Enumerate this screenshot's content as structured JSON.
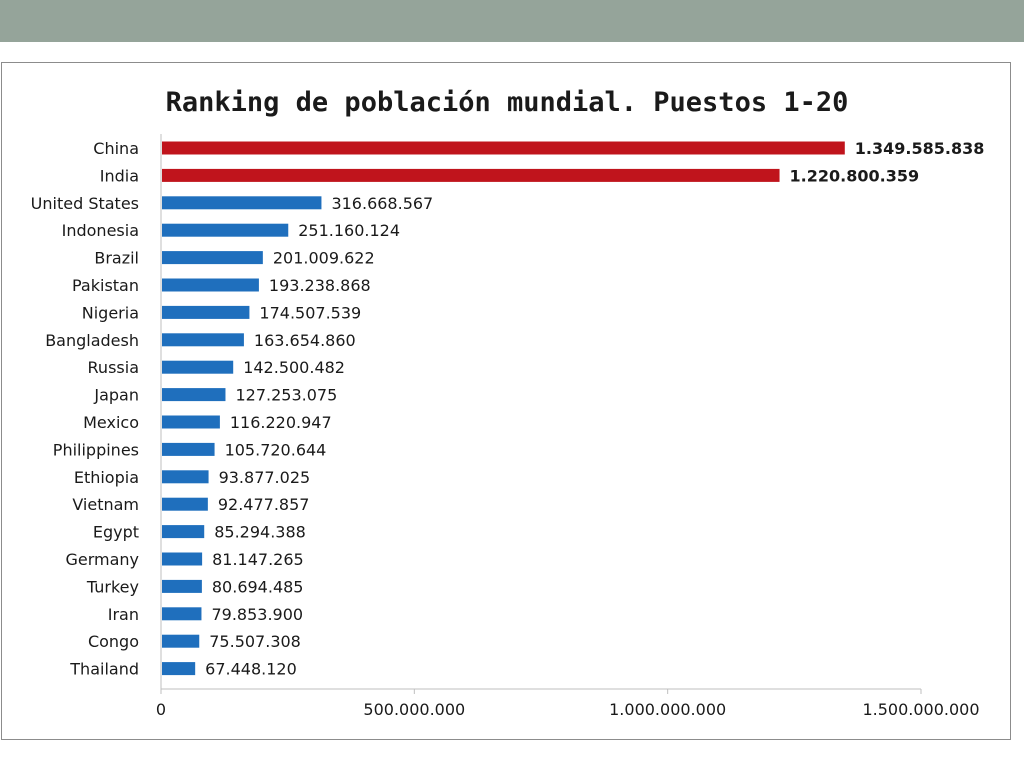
{
  "chart_data": {
    "type": "bar",
    "orientation": "horizontal",
    "title": "Ranking de población mundial. Puestos 1-20",
    "categories": [
      "China",
      "India",
      "United States",
      "Indonesia",
      "Brazil",
      "Pakistan",
      "Nigeria",
      "Bangladesh",
      "Russia",
      "Japan",
      "Mexico",
      "Philippines",
      "Ethiopia",
      "Vietnam",
      "Egypt",
      "Germany",
      "Turkey",
      "Iran",
      "Congo",
      "Thailand"
    ],
    "values": [
      1349585838,
      1220800359,
      316668567,
      251160124,
      201009622,
      193238868,
      174507539,
      163654860,
      142500482,
      127253075,
      116220947,
      105720644,
      93877025,
      92477857,
      85294388,
      81147265,
      80694485,
      79853900,
      75507308,
      67448120
    ],
    "value_labels": [
      "1.349.585.838",
      "1.220.800.359",
      "316.668.567",
      "251.160.124",
      "201.009.622",
      "193.238.868",
      "174.507.539",
      "163.654.860",
      "142.500.482",
      "127.253.075",
      "116.220.947",
      "105.720.644",
      "93.877.025",
      "92.477.857",
      "85.294.388",
      "81.147.265",
      "80.694.485",
      "79.853.900",
      "75.507.308",
      "67.448.120"
    ],
    "highlighted_categories": [
      "China",
      "India"
    ],
    "xlim": [
      0,
      1500000000
    ],
    "x_ticks": [
      0,
      500000000,
      1000000000,
      1500000000
    ],
    "x_tick_labels": [
      "0",
      "500.000.000",
      "1.000.000.000",
      "1.500.000.000"
    ],
    "xlabel": "",
    "ylabel": "",
    "grid": false,
    "legend": "none"
  },
  "colors": {
    "highlight_bar": "#c0141c",
    "default_bar": "#1f6fbd",
    "top_band": "#95a49a",
    "axis": "#bfbfbf",
    "text": "#1a1a1a"
  }
}
